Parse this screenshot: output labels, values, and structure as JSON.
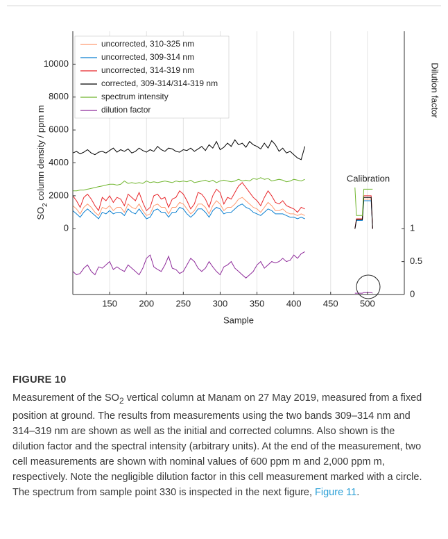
{
  "chart_data": {
    "type": "line",
    "x": [
      100,
      105,
      110,
      115,
      120,
      125,
      130,
      135,
      140,
      145,
      150,
      155,
      160,
      165,
      170,
      175,
      180,
      185,
      190,
      195,
      200,
      205,
      210,
      215,
      220,
      225,
      230,
      235,
      240,
      245,
      250,
      255,
      260,
      265,
      270,
      275,
      280,
      285,
      290,
      295,
      300,
      305,
      310,
      315,
      320,
      325,
      330,
      335,
      340,
      345,
      350,
      355,
      360,
      365,
      370,
      375,
      380,
      385,
      390,
      395,
      400,
      405,
      410,
      415,
      450,
      483,
      485,
      493,
      495,
      505,
      507
    ],
    "series": [
      {
        "name": "uncorrected, 310-325 nm",
        "color": "#ff9a70",
        "values": [
          1400,
          1200,
          900,
          1300,
          1500,
          1300,
          1000,
          800,
          1300,
          1200,
          1400,
          1100,
          1300,
          1300,
          1000,
          1500,
          1300,
          1200,
          1500,
          1100,
          800,
          900,
          1400,
          1500,
          1300,
          1300,
          900,
          1300,
          1300,
          1600,
          1500,
          1200,
          900,
          1100,
          1500,
          1500,
          1300,
          900,
          1400,
          1700,
          1500,
          1100,
          1300,
          1300,
          1500,
          1800,
          1900,
          1700,
          1500,
          1300,
          1200,
          1000,
          1300,
          1600,
          1400,
          1100,
          1100,
          1200,
          1000,
          900,
          900,
          800,
          900,
          800,
          null,
          0,
          550,
          550,
          1800,
          1800,
          0
        ]
      },
      {
        "name": "uncorrected, 309-314 nm",
        "color": "#0a7fd0",
        "values": [
          1100,
          900,
          700,
          1000,
          1200,
          1000,
          800,
          600,
          1000,
          900,
          1100,
          900,
          1000,
          1000,
          800,
          1200,
          1000,
          900,
          1200,
          900,
          600,
          700,
          1100,
          1200,
          1000,
          1000,
          700,
          1000,
          1000,
          1300,
          1200,
          900,
          700,
          900,
          1200,
          1200,
          1000,
          700,
          1100,
          1300,
          1200,
          900,
          1000,
          1000,
          1200,
          1400,
          1500,
          1300,
          1200,
          1000,
          900,
          800,
          1000,
          1200,
          1100,
          900,
          900,
          900,
          800,
          700,
          700,
          600,
          700,
          600,
          null,
          0,
          500,
          500,
          1700,
          1700,
          0
        ]
      },
      {
        "name": "uncorrected, 314-319 nm",
        "color": "#e8262a",
        "values": [
          2000,
          1700,
          1300,
          1900,
          2100,
          1800,
          1400,
          1100,
          1900,
          1700,
          2000,
          1600,
          1900,
          1800,
          1400,
          2100,
          1900,
          1700,
          2200,
          1600,
          1100,
          1300,
          2000,
          2100,
          1800,
          1900,
          1300,
          1800,
          1900,
          2300,
          2100,
          1700,
          1200,
          1500,
          2200,
          2100,
          1800,
          1300,
          2000,
          2400,
          2200,
          1500,
          1900,
          1800,
          2200,
          2600,
          2800,
          2500,
          2200,
          1900,
          1700,
          1400,
          1900,
          2300,
          2000,
          1600,
          1500,
          1700,
          1400,
          1300,
          1200,
          1000,
          1300,
          1200,
          null,
          0,
          600,
          600,
          2000,
          2000,
          0
        ]
      },
      {
        "name": "corrected, 309-314/314-319 nm",
        "color": "#000000",
        "values": [
          4600,
          4700,
          4550,
          4650,
          4800,
          4600,
          4500,
          4650,
          4700,
          4600,
          4750,
          4900,
          4650,
          4800,
          4700,
          4850,
          4600,
          4700,
          4900,
          4750,
          4650,
          4800,
          4700,
          5000,
          4800,
          4700,
          4900,
          4850,
          4700,
          4650,
          4800,
          4750,
          4900,
          4700,
          4850,
          5000,
          4750,
          5100,
          4900,
          5300,
          4800,
          4950,
          5200,
          5000,
          5400,
          5100,
          5200,
          4950,
          5300,
          5100,
          5000,
          4850,
          5200,
          4900,
          5350,
          5100,
          4700,
          4900,
          4600,
          4700,
          4500,
          4300,
          4200,
          5000,
          null,
          0,
          550,
          550,
          1900,
          1900,
          0
        ]
      },
      {
        "name": "spectrum intensity",
        "color": "#6fb52c",
        "values": [
          2300,
          2300,
          2350,
          2350,
          2400,
          2450,
          2500,
          2550,
          2600,
          2650,
          2700,
          2700,
          2650,
          2700,
          2900,
          2750,
          2800,
          2750,
          2800,
          2750,
          2900,
          2800,
          2850,
          2800,
          2850,
          2900,
          2850,
          2800,
          2900,
          2850,
          2900,
          2850,
          2950,
          2800,
          2850,
          2900,
          2950,
          2850,
          2950,
          2800,
          2900,
          2950,
          2900,
          2850,
          2900,
          3000,
          2900,
          2950,
          2900,
          3050,
          3000,
          3100,
          3000,
          3050,
          2900,
          2950,
          3000,
          2950,
          2850,
          2900,
          3000,
          2950,
          2900,
          3000,
          null,
          2500,
          800,
          800,
          2400,
          2400,
          2400
        ]
      },
      {
        "name": "dilution factor",
        "color": "#8e2a9a",
        "axis": "y2",
        "values": [
          0.35,
          0.3,
          0.32,
          0.4,
          0.45,
          0.35,
          0.3,
          0.42,
          0.4,
          0.45,
          0.5,
          0.38,
          0.42,
          0.38,
          0.35,
          0.45,
          0.4,
          0.35,
          0.3,
          0.4,
          0.55,
          0.6,
          0.42,
          0.38,
          0.35,
          0.45,
          0.58,
          0.4,
          0.38,
          0.32,
          0.35,
          0.45,
          0.55,
          0.5,
          0.4,
          0.35,
          0.4,
          0.5,
          0.42,
          0.35,
          0.3,
          0.42,
          0.45,
          0.5,
          0.4,
          0.35,
          0.3,
          0.25,
          0.3,
          0.35,
          0.45,
          0.5,
          0.4,
          0.45,
          0.5,
          0.48,
          0.5,
          0.55,
          0.5,
          0.52,
          0.6,
          0.55,
          0.62,
          0.65,
          null,
          0.02,
          0.02,
          0.02,
          0.03,
          0.03,
          0.02
        ]
      }
    ],
    "xlim": [
      100,
      550
    ],
    "xticks": [
      150,
      200,
      250,
      300,
      350,
      400,
      450,
      500
    ],
    "ylim": [
      -4000,
      12000
    ],
    "yticks": [
      0,
      2000,
      4000,
      6000,
      8000,
      10000
    ],
    "y2lim": [
      0,
      4
    ],
    "y2ticks": [
      0,
      0.5,
      1
    ],
    "x_label": "Sample",
    "y_label": [
      "SO",
      "2",
      " column density / ppm m"
    ],
    "y2_label": "Dilution factor",
    "annotation": "Calibration",
    "grid": "x",
    "legend": "upper left"
  },
  "caption": {
    "label": "FIGURE 10",
    "parts": [
      "Measurement of the SO",
      "2",
      " vertical column at Manam on 27 May 2019, measured from a fixed position at ground. The results from measurements using the two bands 309–314 nm and 314–319 nm are shown as well as the initial and corrected columns. Also shown is the dilution factor and the spectral intensity (arbitrary units). At the end of the measurement, two cell measurements are shown with nominal values of 600 ppm m and 2,000 ppm m, respectively. Note the negligible dilution factor in this cell measurement marked with a circle. The spectrum from sample point 330 is inspected in the next figure, ",
      "Figure 11",
      "."
    ]
  }
}
